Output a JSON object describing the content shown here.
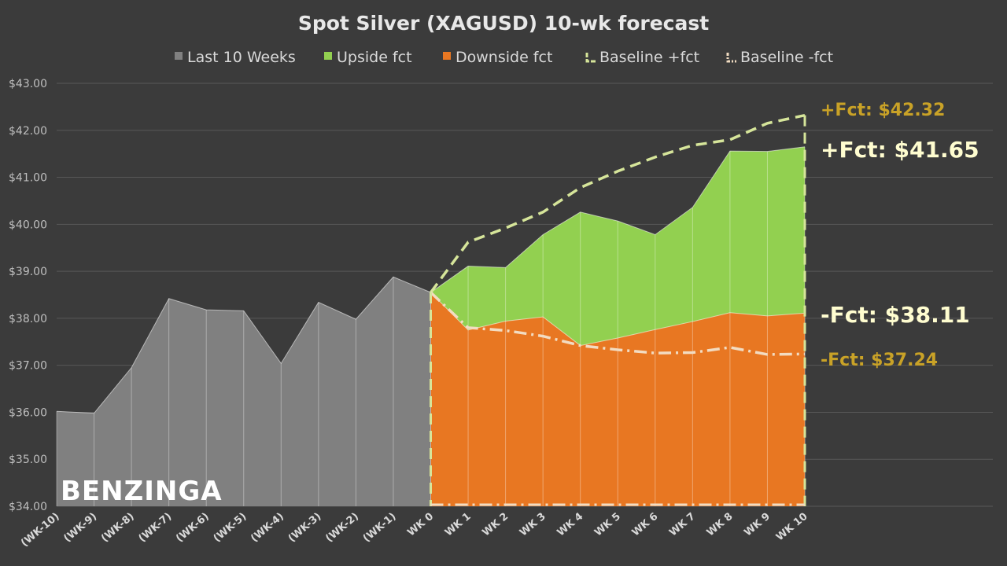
{
  "chart_data": {
    "type": "area",
    "title": "Spot Silver (XAGUSD) 10-wk forecast",
    "categories": [
      "(WK-10)",
      "(WK-9)",
      "(WK-8)",
      "(WK-7)",
      "(WK-6)",
      "(WK-5)",
      "(WK-4)",
      "(WK-3)",
      "(WK-2)",
      "(WK-1)",
      "WK 0",
      "WK 1",
      "WK 2",
      "WK 3",
      "WK 4",
      "WK 5",
      "WK 6",
      "WK 7",
      "WK 8",
      "WK 9",
      "WK 10"
    ],
    "ylim": [
      34,
      43
    ],
    "yticks": [
      "$34.00",
      "$35.00",
      "$36.00",
      "$37.00",
      "$38.00",
      "$39.00",
      "$40.00",
      "$41.00",
      "$42.00",
      "$43.00"
    ],
    "grid": true,
    "legend_position": "top",
    "series": [
      {
        "name": "Last 10 Weeks",
        "color": "#808080",
        "values": [
          36.02,
          35.98,
          36.95,
          38.42,
          38.18,
          38.16,
          37.04,
          38.34,
          37.98,
          38.88,
          38.55,
          null,
          null,
          null,
          null,
          null,
          null,
          null,
          null,
          null,
          null
        ]
      },
      {
        "name": "Upside fct",
        "color": "#92d050",
        "values": [
          null,
          null,
          null,
          null,
          null,
          null,
          null,
          null,
          null,
          null,
          38.55,
          39.11,
          39.08,
          39.78,
          40.26,
          40.07,
          39.78,
          40.36,
          41.56,
          41.55,
          41.65
        ]
      },
      {
        "name": "Downside fct",
        "color": "#e87722",
        "values": [
          null,
          null,
          null,
          null,
          null,
          null,
          null,
          null,
          null,
          null,
          38.55,
          37.75,
          37.94,
          38.03,
          37.42,
          37.58,
          37.76,
          37.93,
          38.12,
          38.05,
          38.11
        ]
      },
      {
        "name": "Baseline +fct",
        "color": "#d6e59a",
        "values": [
          null,
          null,
          null,
          null,
          null,
          null,
          null,
          null,
          null,
          null,
          38.55,
          39.62,
          39.92,
          40.26,
          40.78,
          41.13,
          41.43,
          41.68,
          41.8,
          42.15,
          42.32
        ]
      },
      {
        "name": "Baseline -fct",
        "color": "#f2dcc2",
        "values": [
          null,
          null,
          null,
          null,
          null,
          null,
          null,
          null,
          null,
          null,
          38.55,
          37.8,
          37.74,
          37.62,
          37.42,
          37.33,
          37.26,
          37.27,
          37.38,
          37.23,
          37.24
        ]
      }
    ],
    "annotations": [
      {
        "text": "+Fct: $42.32",
        "color": "#c9a227"
      },
      {
        "text": "+Fct: $41.65",
        "color": "#fffdd0"
      },
      {
        "text": "-Fct: $38.11",
        "color": "#fffdd0"
      },
      {
        "text": "-Fct: $37.24",
        "color": "#c9a227"
      }
    ]
  },
  "branding": {
    "logo_text": "BENZINGA"
  }
}
